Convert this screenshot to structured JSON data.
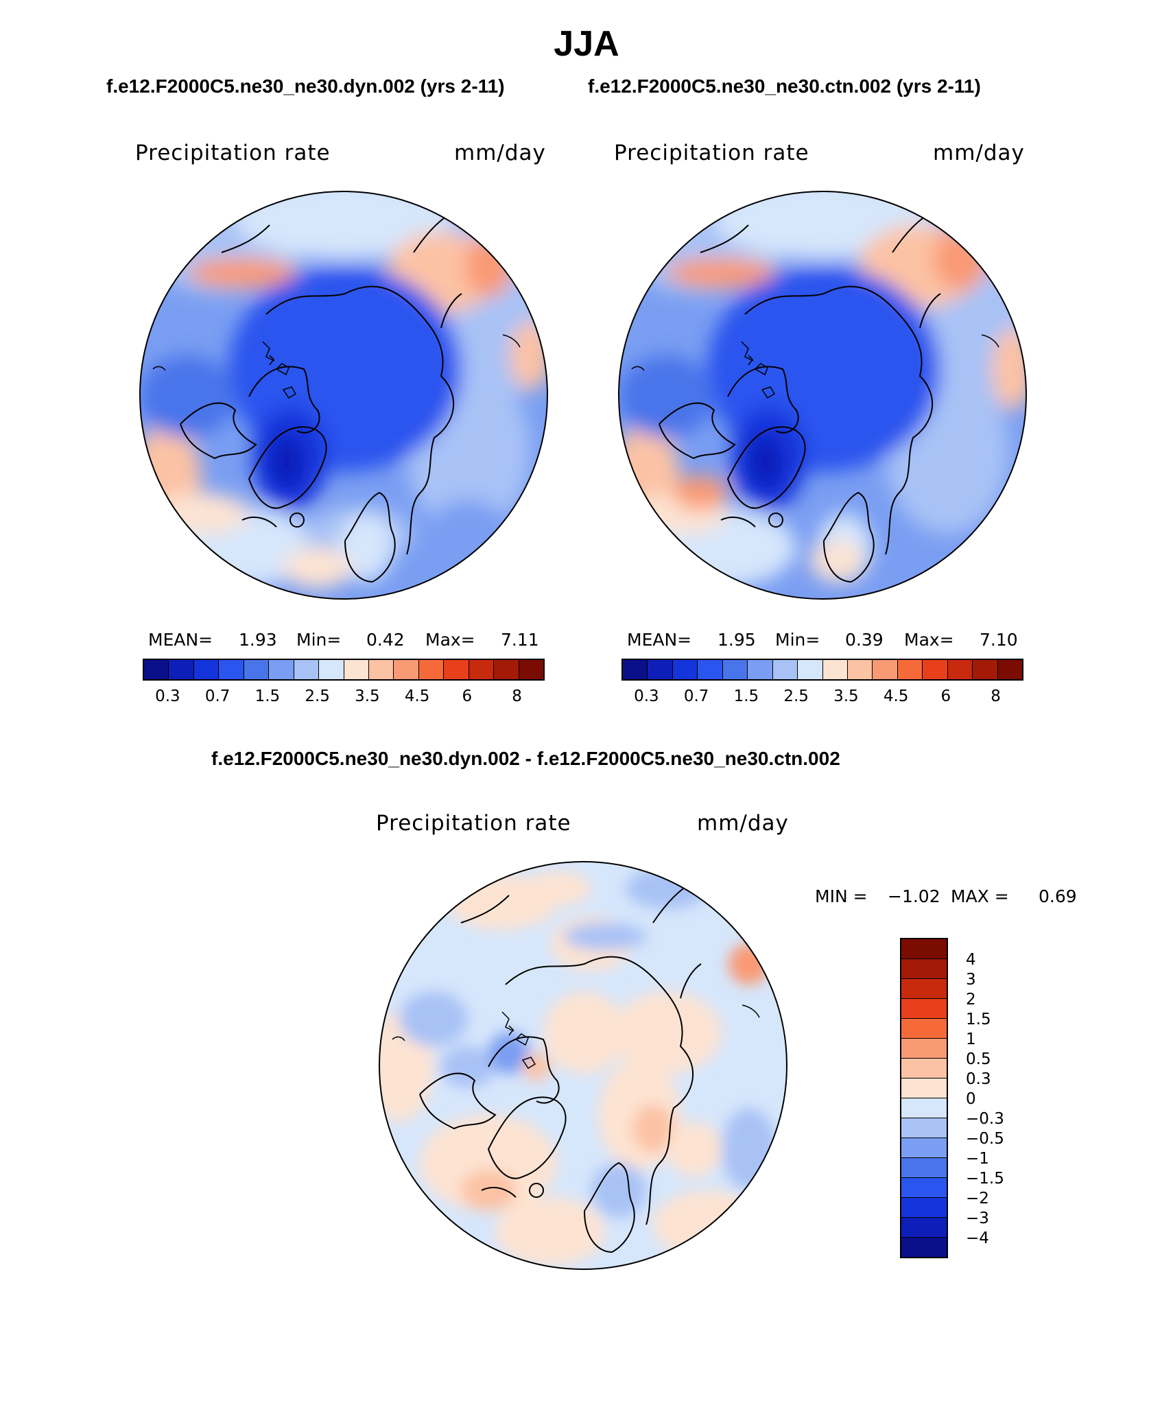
{
  "title": "JJA",
  "subtitle_left": "f.e12.F2000C5.ne30_ne30.dyn.002 (yrs 2-11)",
  "subtitle_right": "f.e12.F2000C5.ne30_ne30.ctn.002 (yrs 2-11)",
  "diff_title": "f.e12.F2000C5.ne30_ne30.dyn.002 - f.e12.F2000C5.ne30_ne30.ctn.002",
  "panels": [
    {
      "variable": "Precipitation rate",
      "units": "mm/day",
      "mean_label": "MEAN=",
      "mean": "1.93",
      "min_label": "Min=",
      "min": "0.42",
      "max_label": "Max=",
      "max": "7.11"
    },
    {
      "variable": "Precipitation rate",
      "units": "mm/day",
      "mean_label": "MEAN=",
      "mean": "1.95",
      "min_label": "Min=",
      "min": "0.39",
      "max_label": "Max=",
      "max": "7.10"
    }
  ],
  "diff_panel": {
    "variable": "Precipitation rate",
    "units": "mm/day",
    "min_label": "MIN =",
    "min": "−1.02",
    "max_label": "MAX =",
    "max": "0.69"
  },
  "abs_colorbar": {
    "tick_labels": [
      "0.3",
      "0.7",
      "1.5",
      "2.5",
      "3.5",
      "4.5",
      "6",
      "8"
    ],
    "colors": [
      "#0a0f8a",
      "#0d1fb8",
      "#1435dc",
      "#2a55ee",
      "#4a75ea",
      "#7a9ef2",
      "#a8c2f6",
      "#d6e6fb",
      "#fde3d2",
      "#fcc2a4",
      "#f99a74",
      "#f66a3a",
      "#e8401a",
      "#c82a0e",
      "#a31a06",
      "#7a0c02"
    ]
  },
  "diff_colorbar": {
    "tick_labels": [
      "4",
      "3",
      "2",
      "1.5",
      "1",
      "0.5",
      "0.3",
      "0",
      "−0.3",
      "−0.5",
      "−1",
      "−1.5",
      "−2",
      "−3",
      "−4"
    ],
    "colors": [
      "#7a0c02",
      "#a31a06",
      "#c82a0e",
      "#e8401a",
      "#f66a3a",
      "#f99a74",
      "#fcc2a4",
      "#fde3d2",
      "#d6e6fb",
      "#a8c2f6",
      "#7a9ef2",
      "#4a75ea",
      "#2a55ee",
      "#1435dc",
      "#0d1fb8",
      "#0a0f8a"
    ]
  }
}
